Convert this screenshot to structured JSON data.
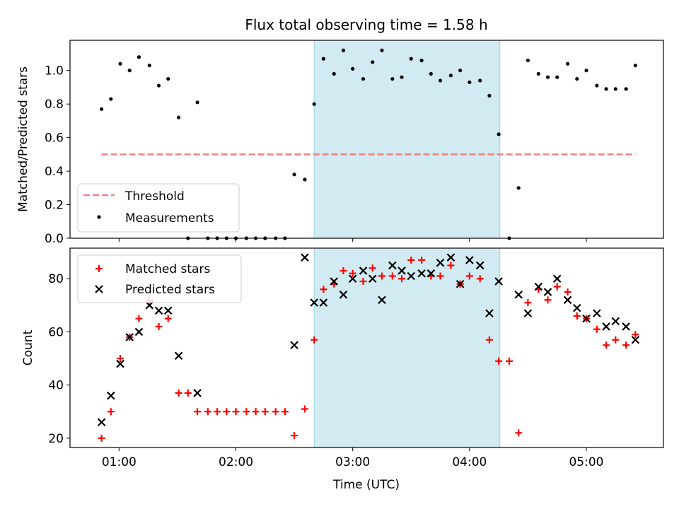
{
  "title": "Flux total observing time = 1.58 h",
  "colors": {
    "shade": "#add8e6",
    "threshold": "#f08080",
    "measurements": "#000000",
    "matched": "#ff0000",
    "predicted": "#000000"
  },
  "chart_data": [
    {
      "type": "scatter",
      "ylabel": "Matched/Predicted stars",
      "ylim": [
        0,
        1.18
      ],
      "yticks": [
        "0.0",
        "0.2",
        "0.4",
        "0.6",
        "0.8",
        "1.0"
      ],
      "xlim_hours": [
        0.58,
        5.66
      ],
      "xtick_labels": [
        "01:00",
        "02:00",
        "03:00",
        "04:00",
        "05:00"
      ],
      "shaded_interval_hours": [
        2.67,
        4.26
      ],
      "legend": {
        "position": "lower-left",
        "entries": [
          "Threshold",
          "Measurements"
        ]
      },
      "series": [
        {
          "name": "Threshold",
          "style": "dashed-line",
          "x": [
            0.85,
            5.42
          ],
          "values": [
            0.5,
            0.5
          ]
        },
        {
          "name": "Measurements",
          "style": "dot",
          "x": [
            0.85,
            0.93,
            1.01,
            1.09,
            1.17,
            1.26,
            1.34,
            1.42,
            1.51,
            1.59,
            1.67,
            1.76,
            1.84,
            1.92,
            2.0,
            2.09,
            2.17,
            2.25,
            2.34,
            2.42,
            2.5,
            2.59,
            2.67,
            2.75,
            2.84,
            2.92,
            3.0,
            3.09,
            3.17,
            3.25,
            3.34,
            3.42,
            3.5,
            3.59,
            3.67,
            3.75,
            3.84,
            3.92,
            4.0,
            4.09,
            4.17,
            4.25,
            4.34,
            4.42,
            4.5,
            4.59,
            4.67,
            4.75,
            4.84,
            4.92,
            5.0,
            5.09,
            5.17,
            5.25,
            5.34,
            5.42
          ],
          "values": [
            0.77,
            0.83,
            1.04,
            1.0,
            1.08,
            1.03,
            0.91,
            0.95,
            0.72,
            0.0,
            0.81,
            0.0,
            0.0,
            0.0,
            0.0,
            0.0,
            0.0,
            0.0,
            0.0,
            0.0,
            0.38,
            0.35,
            0.8,
            1.07,
            0.98,
            1.12,
            1.01,
            0.95,
            1.05,
            1.12,
            0.95,
            0.96,
            1.07,
            1.06,
            0.98,
            0.94,
            0.97,
            1.0,
            0.93,
            0.94,
            0.85,
            0.62,
            0.0,
            0.3,
            1.06,
            0.98,
            0.96,
            0.96,
            1.04,
            0.95,
            1.0,
            0.91,
            0.89,
            0.89,
            0.89,
            1.03
          ]
        }
      ]
    },
    {
      "type": "scatter",
      "xlabel": "Time (UTC)",
      "ylabel": "Count",
      "ylim": [
        16.5,
        91.5
      ],
      "yticks": [
        "20",
        "40",
        "60",
        "80"
      ],
      "xlim_hours": [
        0.58,
        5.66
      ],
      "xtick_labels": [
        "01:00",
        "02:00",
        "03:00",
        "04:00",
        "05:00"
      ],
      "shaded_interval_hours": [
        2.67,
        4.26
      ],
      "legend": {
        "position": "upper-left",
        "entries": [
          "Matched stars",
          "Predicted stars"
        ]
      },
      "series": [
        {
          "name": "Matched stars",
          "marker": "plus",
          "x": [
            0.85,
            0.93,
            1.01,
            1.09,
            1.17,
            1.26,
            1.34,
            1.42,
            1.51,
            1.59,
            1.67,
            1.76,
            1.84,
            1.92,
            2.0,
            2.09,
            2.17,
            2.25,
            2.34,
            2.42,
            2.5,
            2.59,
            2.67,
            2.75,
            2.84,
            2.92,
            3.0,
            3.09,
            3.17,
            3.25,
            3.34,
            3.42,
            3.5,
            3.59,
            3.67,
            3.75,
            3.84,
            3.92,
            4.0,
            4.09,
            4.17,
            4.25,
            4.34,
            4.42,
            4.5,
            4.59,
            4.67,
            4.75,
            4.84,
            4.92,
            5.0,
            5.09,
            5.17,
            5.25,
            5.34,
            5.42
          ],
          "values": [
            20,
            30,
            50,
            58,
            65,
            72,
            62,
            65,
            37,
            37,
            30,
            30,
            30,
            30,
            30,
            30,
            30,
            30,
            30,
            30,
            21,
            31,
            57,
            76,
            78,
            83,
            82,
            79,
            84,
            81,
            81,
            80,
            87,
            87,
            81,
            81,
            85,
            78,
            81,
            80,
            57,
            49,
            49,
            22,
            71,
            76,
            72,
            77,
            75,
            66,
            65,
            61,
            55,
            57,
            55,
            59
          ]
        },
        {
          "name": "Predicted stars",
          "marker": "x",
          "x": [
            0.85,
            0.93,
            1.01,
            1.09,
            1.17,
            1.26,
            1.34,
            1.42,
            1.51,
            1.67,
            2.5,
            2.59,
            2.67,
            2.75,
            2.84,
            2.92,
            3.0,
            3.09,
            3.17,
            3.25,
            3.34,
            3.42,
            3.5,
            3.59,
            3.67,
            3.75,
            3.84,
            3.92,
            4.0,
            4.09,
            4.17,
            4.25,
            4.42,
            4.5,
            4.59,
            4.67,
            4.75,
            4.84,
            4.92,
            5.0,
            5.09,
            5.17,
            5.25,
            5.34,
            5.42
          ],
          "values": [
            26,
            36,
            48,
            58,
            60,
            70,
            68,
            68,
            51,
            37,
            55,
            88,
            71,
            71,
            79,
            74,
            80,
            83,
            80,
            72,
            85,
            83,
            81,
            82,
            82,
            86,
            88,
            78,
            87,
            85,
            67,
            79,
            74,
            67,
            77,
            75,
            80,
            72,
            69,
            65,
            67,
            62,
            64,
            62,
            57
          ]
        }
      ]
    }
  ]
}
